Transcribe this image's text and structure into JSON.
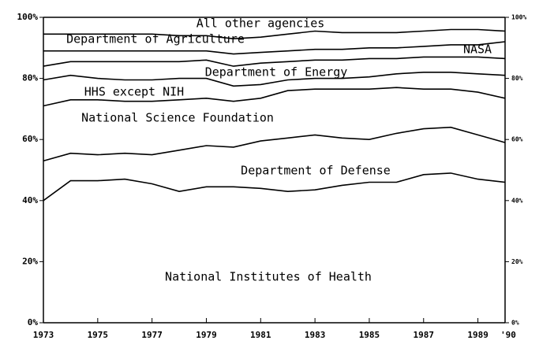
{
  "chart_data": {
    "type": "stacked-line",
    "x": [
      1973,
      1974,
      1975,
      1976,
      1977,
      1978,
      1979,
      1980,
      1981,
      1982,
      1983,
      1984,
      1985,
      1986,
      1987,
      1988,
      1989,
      1990
    ],
    "series": [
      {
        "name": "National Institutes of Health",
        "color": "#000000",
        "values": [
          40,
          46.5,
          46.5,
          47,
          45.5,
          43,
          44.5,
          44.5,
          44,
          43,
          43.5,
          45,
          46,
          46,
          48.5,
          49,
          47,
          46
        ]
      },
      {
        "name": "Department of Defense",
        "color": "#000000",
        "values": [
          13,
          9,
          8.5,
          8.5,
          9.5,
          13.5,
          13.5,
          13,
          15.5,
          17.5,
          18,
          15.5,
          14,
          16,
          15,
          15,
          14.5,
          13
        ]
      },
      {
        "name": "National Science Foundation",
        "color": "#000000",
        "values": [
          18,
          17.5,
          18,
          17,
          17.5,
          16.5,
          15.5,
          15,
          14,
          15.5,
          15,
          16,
          16.5,
          15,
          13,
          12.5,
          14,
          14.5
        ]
      },
      {
        "name": "HHS except NIH",
        "color": "#000000",
        "values": [
          8.5,
          8,
          7,
          7,
          7,
          7,
          6.5,
          5,
          4.5,
          3.5,
          3.5,
          3.5,
          4,
          4.5,
          5.5,
          5.5,
          6,
          7.5
        ]
      },
      {
        "name": "Department of Energy",
        "color": "#000000",
        "values": [
          4.5,
          4.5,
          5.5,
          6,
          6,
          5.5,
          6,
          6.5,
          7,
          6,
          6,
          6,
          6,
          5,
          5,
          5,
          5.5,
          5.5
        ]
      },
      {
        "name": "NASA",
        "color": "#000000",
        "values": [
          5,
          3.5,
          3.5,
          3.5,
          3.5,
          3.5,
          3,
          4,
          3.5,
          3.5,
          3.5,
          3.5,
          3.5,
          3.5,
          3.5,
          4,
          4,
          5.5
        ]
      },
      {
        "name": "Department of Agriculture",
        "color": "#000000",
        "values": [
          5.5,
          5.5,
          5.5,
          5.5,
          5.5,
          5,
          5,
          5,
          5,
          5.5,
          6,
          5.5,
          5,
          5,
          5,
          5,
          5,
          3.5
        ]
      },
      {
        "name": "All other agencies",
        "color": "#000000",
        "values": [
          5.5,
          5.5,
          5.5,
          5.5,
          5.5,
          6,
          6,
          7,
          6.5,
          5.5,
          4.5,
          5,
          5,
          5,
          4.5,
          4,
          4,
          4.5
        ]
      }
    ],
    "xlim": [
      1973,
      1990
    ],
    "xticks": [
      1973,
      1975,
      1977,
      1979,
      1981,
      1983,
      1985,
      1987,
      1989,
      {
        "value": 1990,
        "label": "'90"
      }
    ],
    "ylim": [
      0,
      100
    ],
    "yticks": [
      {
        "value": 0,
        "label": "0%"
      },
      {
        "value": 20,
        "label": "20%"
      },
      {
        "value": 40,
        "label": "40%"
      },
      {
        "value": 60,
        "label": "60%"
      },
      {
        "value": 80,
        "label": "80%"
      },
      {
        "value": 100,
        "label": "100%"
      }
    ],
    "y2lim": [
      0,
      100
    ],
    "y2ticks": [
      {
        "value": 0,
        "label": "0%"
      },
      {
        "value": 20,
        "label": "20%"
      },
      {
        "value": 40,
        "label": "40%"
      },
      {
        "value": 60,
        "label": "60%"
      },
      {
        "value": 80,
        "label": "80%"
      },
      {
        "value": 100,
        "label": "100%"
      }
    ]
  }
}
